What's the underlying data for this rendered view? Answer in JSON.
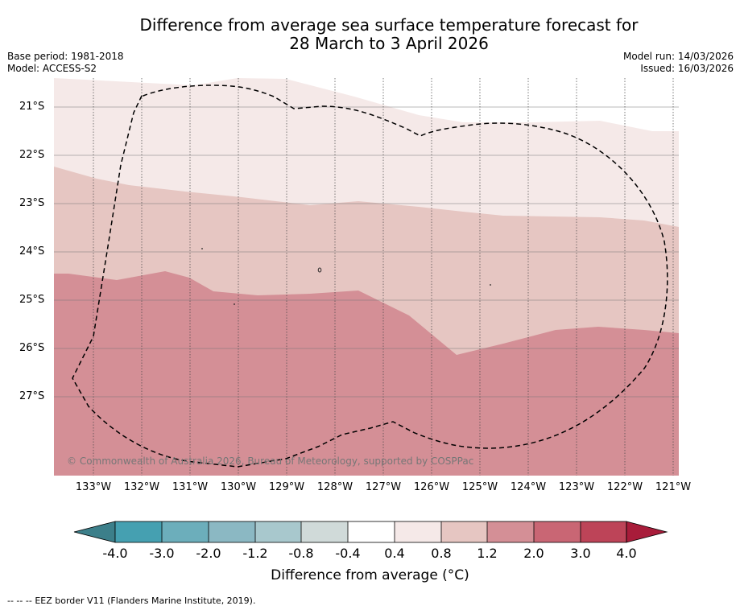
{
  "title": {
    "line1": "Difference from average sea surface temperature forecast for",
    "line2": "28 March to 3 April 2026"
  },
  "meta_left": {
    "base_period": "Base period: 1981-2018",
    "model": "Model: ACCESS-S2"
  },
  "meta_right": {
    "model_run": "Model run: 14/03/2026",
    "issued": "Issued: 16/03/2026"
  },
  "map": {
    "lat_labels": [
      "21°S",
      "22°S",
      "23°S",
      "24°S",
      "25°S",
      "26°S",
      "27°S"
    ],
    "lon_labels": [
      "133°W",
      "132°W",
      "131°W",
      "130°W",
      "129°W",
      "128°W",
      "127°W",
      "126°W",
      "125°W",
      "124°W",
      "123°W",
      "122°W",
      "121°W"
    ],
    "copyright": "© Commonwealth of Australia 2026, Bureau of Meteorology, supported by COSPPac",
    "colors": {
      "band_0_4_0_8": "#f5e9e8",
      "band_0_8_1_2": "#e6c6c2",
      "band_1_2_2_0": "#d48f96"
    }
  },
  "colorbar": {
    "ticks": [
      "-4.0",
      "-3.0",
      "-2.0",
      "-1.2",
      "-0.8",
      "-0.4",
      "0.4",
      "0.8",
      "1.2",
      "2.0",
      "3.0",
      "4.0"
    ],
    "colors": [
      "#3c7f8a",
      "#45a0b1",
      "#6caebb",
      "#8bb8c3",
      "#a8c8cd",
      "#d0dad9",
      "#ffffff",
      "#f5e9e8",
      "#e6c6c2",
      "#d48f96",
      "#c96674",
      "#bd4458",
      "#a81c3a"
    ],
    "label": "Difference from average (°C)"
  },
  "footer": {
    "legend_symbol": "-- -- --",
    "text": "EEZ border V11 (Flanders Marine Institute, 2019)."
  }
}
